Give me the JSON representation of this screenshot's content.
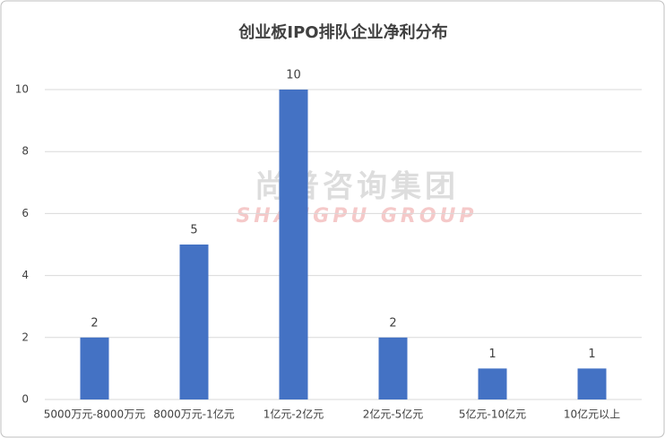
{
  "chart_data": {
    "type": "bar",
    "title": "创业板IPO排队企业净利分布",
    "categories": [
      "5000万元-8000万元",
      "8000万元-1亿元",
      "1亿元-2亿元",
      "2亿元-5亿元",
      "5亿元-10亿元",
      "10亿元以上"
    ],
    "values": [
      2,
      5,
      10,
      2,
      1,
      1
    ],
    "color": "#4472c4",
    "ylim": [
      0,
      10
    ],
    "yticks": [
      0,
      2,
      4,
      6,
      8,
      10
    ],
    "grid": true,
    "watermark": {
      "cn": "尚普咨询集团",
      "en": "SHANGPU GROUP"
    }
  }
}
